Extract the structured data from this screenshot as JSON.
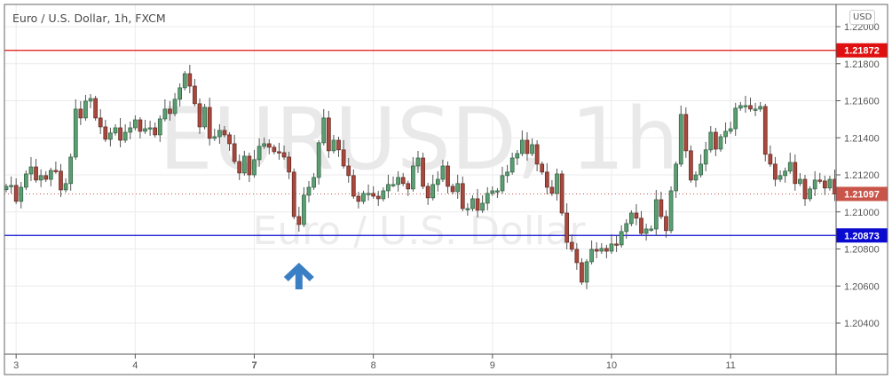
{
  "header": {
    "title": "Euro / U.S. Dollar, 1h, FXCM",
    "currency_button": "USD"
  },
  "watermark": {
    "symbol": "EURUSD, 1h",
    "description": "Euro / U.S. Dollar"
  },
  "colors": {
    "up": "#5b9e72",
    "down": "#a9483c",
    "resistance": "#e01010",
    "support": "#0a0ad0",
    "last_price": "#c9554a",
    "arrow": "#3a7fc4"
  },
  "chart_data": {
    "type": "candlestick",
    "symbol": "EURUSD",
    "interval": "1h",
    "ylim": [
      1.2027,
      1.2215
    ],
    "y_ticks": [
      "1.22000",
      "1.21800",
      "1.21600",
      "1.21400",
      "1.21200",
      "1.21000",
      "1.20800",
      "1.20600",
      "1.20400"
    ],
    "x_ticks": [
      {
        "label": "3",
        "bar": 2
      },
      {
        "label": "4",
        "bar": 26
      },
      {
        "label": "7",
        "bar": 50
      },
      {
        "label": "8",
        "bar": 74
      },
      {
        "label": "9",
        "bar": 98
      },
      {
        "label": "10",
        "bar": 122
      },
      {
        "label": "11",
        "bar": 146
      }
    ],
    "first_open": 1.2112,
    "close": [
      1.21138,
      1.21143,
      1.21057,
      1.21133,
      1.21205,
      1.21243,
      1.21172,
      1.21196,
      1.21176,
      1.21224,
      1.2122,
      1.21119,
      1.21153,
      1.21296,
      1.21555,
      1.21507,
      1.21598,
      1.21612,
      1.21507,
      1.21459,
      1.21392,
      1.21426,
      1.21454,
      1.21387,
      1.2143,
      1.21454,
      1.21497,
      1.21435,
      1.21449,
      1.21454,
      1.21416,
      1.21502,
      1.21555,
      1.21531,
      1.21608,
      1.2167,
      1.21746,
      1.21679,
      1.21584,
      1.21459,
      1.21564,
      1.21397,
      1.21406,
      1.2144,
      1.21416,
      1.21368,
      1.21272,
      1.2121,
      1.21301,
      1.212,
      1.21282,
      1.21354,
      1.21368,
      1.21349,
      1.21325,
      1.2132,
      1.21296,
      1.21215,
      1.20975,
      1.20932,
      1.2109,
      1.21133,
      1.21186,
      1.21373,
      1.21507,
      1.2133,
      1.21387,
      1.21335,
      1.21248,
      1.21196,
      1.21085,
      1.21057,
      1.211,
      1.211,
      1.21085,
      1.21071,
      1.21114,
      1.21148,
      1.21148,
      1.21186,
      1.21153,
      1.21124,
      1.21248,
      1.21291,
      1.21138,
      1.21076,
      1.21148,
      1.21176,
      1.21248,
      1.21138,
      1.21109,
      1.21153,
      1.21018,
      1.21018,
      1.21071,
      1.21009,
      1.21047,
      1.211,
      1.21114,
      1.21114,
      1.21196,
      1.21215,
      1.21291,
      1.21315,
      1.21387,
      1.21315,
      1.21363,
      1.21258,
      1.21215,
      1.21133,
      1.211,
      1.21205,
      1.20994,
      1.20836,
      1.20798,
      1.20726,
      1.20621,
      1.20731,
      1.20798,
      1.20788,
      1.20803,
      1.20788,
      1.20827,
      1.20822,
      1.20894,
      1.20937,
      1.20994,
      1.20966,
      1.20884,
      1.20908,
      1.20908,
      1.21066,
      1.20975,
      1.20899,
      1.21114,
      1.21258,
      1.21526,
      1.2133,
      1.21172,
      1.212,
      1.21258,
      1.21335,
      1.2143,
      1.21339,
      1.21406,
      1.21435,
      1.21449,
      1.2156,
      1.21574,
      1.21574,
      1.21555,
      1.21555,
      1.21569,
      1.21311,
      1.21258,
      1.21176,
      1.21196,
      1.2122,
      1.21267,
      1.21153,
      1.21176,
      1.21071,
      1.21124,
      1.21172,
      1.21167,
      1.21129,
      1.21176,
      1.21097
    ],
    "horizontal_lines": [
      {
        "label": "1.21872",
        "value": 1.21872,
        "color": "#e01010"
      },
      {
        "label": "1.20873",
        "value": 1.20873,
        "color": "#0a0ad0"
      }
    ],
    "last_price": {
      "label": "1.21097",
      "value": 1.21097
    },
    "annotations": [
      {
        "type": "arrow-up",
        "bar": 59
      }
    ],
    "grid": true
  }
}
